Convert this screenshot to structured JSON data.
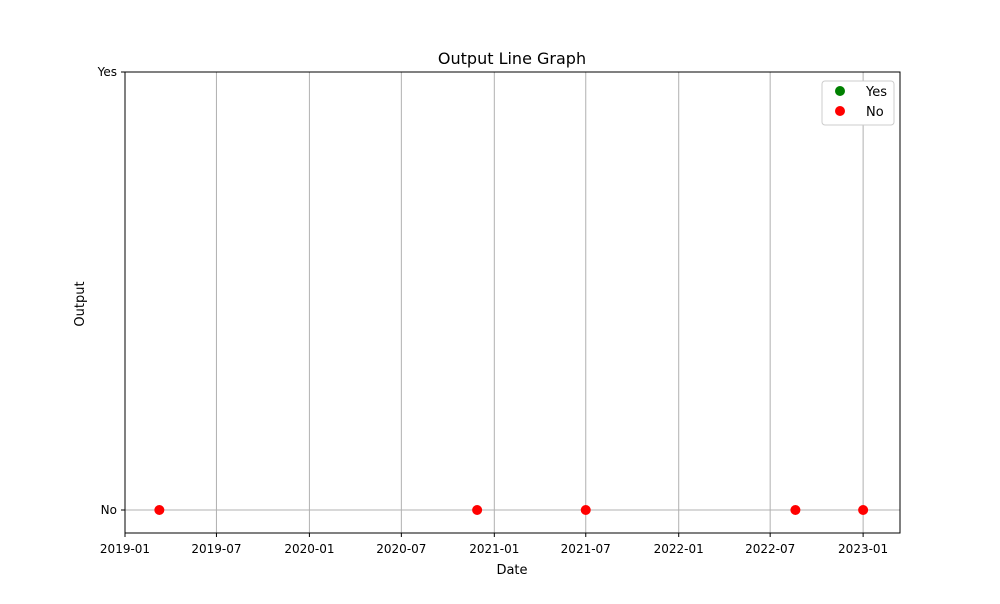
{
  "chart_data": {
    "type": "scatter",
    "title": "Output Line Graph",
    "xlabel": "Date",
    "ylabel": "Output",
    "x_axis": {
      "kind": "date",
      "range": [
        "2019-01-01",
        "2023-03-15"
      ],
      "ticks": [
        "2019-01",
        "2019-07",
        "2020-01",
        "2020-07",
        "2021-01",
        "2021-07",
        "2022-01",
        "2022-07",
        "2023-01"
      ]
    },
    "y_axis": {
      "kind": "categorical",
      "categories": [
        "No",
        "Yes"
      ],
      "ticks": [
        "No",
        "Yes"
      ]
    },
    "grid": true,
    "legend": {
      "placement": "top-right",
      "entries": [
        "Yes",
        "No"
      ]
    },
    "series": [
      {
        "name": "Yes",
        "color": "#008000",
        "marker": "circle",
        "x": [],
        "y": []
      },
      {
        "name": "No",
        "color": "#ff0000",
        "marker": "circle",
        "x": [
          "2019-03-10",
          "2020-11-28",
          "2021-07-01",
          "2022-08-20",
          "2023-01-01"
        ],
        "y": [
          "No",
          "No",
          "No",
          "No",
          "No"
        ]
      }
    ]
  }
}
